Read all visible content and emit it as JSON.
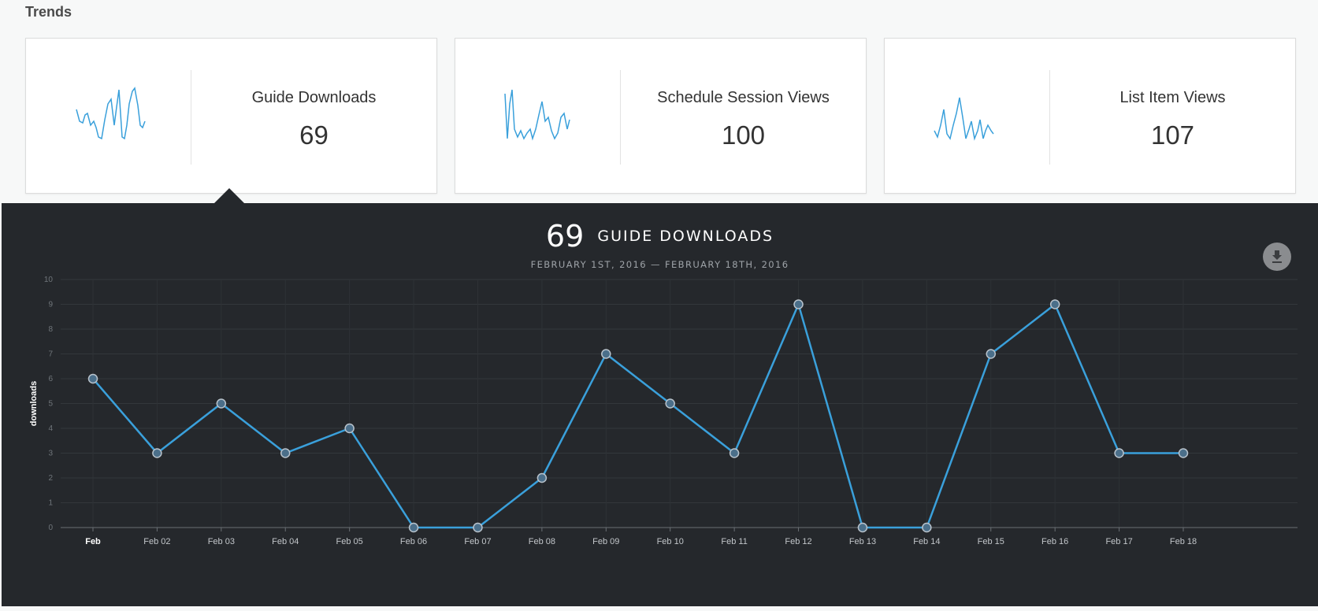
{
  "section_title": "Trends",
  "cards": [
    {
      "label": "Guide Downloads",
      "value": "69"
    },
    {
      "label": "Schedule Session Views",
      "value": "100"
    },
    {
      "label": "List Item Views",
      "value": "107"
    }
  ],
  "detail": {
    "headline_value": "69",
    "headline_label": "GUIDE DOWNLOADS",
    "date_range": "FEBRUARY 1ST, 2016 — FEBRUARY 18TH, 2016",
    "download_icon": "download-icon"
  },
  "colors": {
    "accent": "#3aa0db",
    "panel_bg": "#25282c",
    "grid": "#33373b"
  },
  "chart_data": {
    "type": "line",
    "x": [
      "Feb",
      "Feb 02",
      "Feb 03",
      "Feb 04",
      "Feb 05",
      "Feb 06",
      "Feb 07",
      "Feb 08",
      "Feb 09",
      "Feb 10",
      "Feb 11",
      "Feb 12",
      "Feb 13",
      "Feb 14",
      "Feb 15",
      "Feb 16",
      "Feb 17",
      "Feb 18"
    ],
    "series": [
      {
        "values": [
          6,
          3,
          5,
          3,
          4,
          0,
          0,
          2,
          7,
          5,
          3,
          9,
          0,
          0,
          7,
          9,
          3,
          3
        ]
      }
    ],
    "ylabel": "downloads",
    "ylim": [
      0,
      10
    ],
    "yticks": [
      0,
      1,
      2,
      3,
      4,
      5,
      6,
      7,
      8,
      9,
      10
    ],
    "grid": true
  }
}
